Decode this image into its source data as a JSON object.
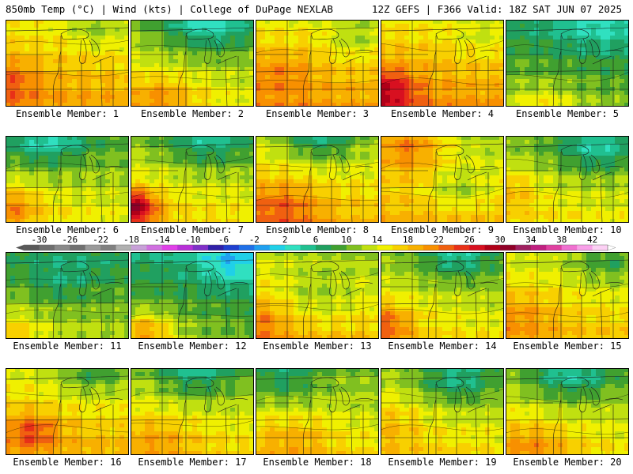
{
  "header": {
    "left": "850mb Temp (°C) | Wind (kts) | College of DuPage NEXLAB",
    "right": "12Z GEFS | F366 Valid: 18Z SAT JUN 07 2025"
  },
  "panels": [
    {
      "label": "Ensemble Member: 1",
      "base": 17.5,
      "blobs": [
        [
          0.0,
          0.7,
          0.25,
          4
        ],
        [
          0.7,
          0.1,
          0.2,
          -3
        ]
      ],
      "icon": "temperature-map-icon"
    },
    {
      "label": "Ensemble Member: 2",
      "base": 13.0,
      "blobs": [
        [
          0.6,
          0.0,
          0.35,
          -7
        ],
        [
          0.2,
          0.9,
          0.3,
          5
        ]
      ],
      "icon": "temperature-map-icon"
    },
    {
      "label": "Ensemble Member: 3",
      "base": 17.5,
      "blobs": [
        [
          0.2,
          0.6,
          0.25,
          3
        ],
        [
          0.8,
          0.2,
          0.2,
          -3
        ]
      ],
      "icon": "temperature-map-icon"
    },
    {
      "label": "Ensemble Member: 4",
      "base": 18.0,
      "blobs": [
        [
          0.0,
          0.8,
          0.25,
          9
        ],
        [
          0.8,
          0.2,
          0.2,
          -2
        ]
      ],
      "icon": "temperature-map-icon"
    },
    {
      "label": "Ensemble Member: 5",
      "base": 9.0,
      "blobs": [
        [
          0.7,
          0.0,
          0.3,
          -3
        ],
        [
          0.3,
          1.0,
          0.25,
          4
        ]
      ],
      "icon": "temperature-map-icon"
    },
    {
      "label": "Ensemble Member: 6",
      "base": 13.0,
      "blobs": [
        [
          0.3,
          0.0,
          0.35,
          -7
        ],
        [
          0.0,
          0.8,
          0.25,
          6
        ]
      ],
      "icon": "temperature-map-icon"
    },
    {
      "label": "Ensemble Member: 7",
      "base": 14.0,
      "blobs": [
        [
          0.6,
          0.0,
          0.35,
          -6
        ],
        [
          0.0,
          0.8,
          0.2,
          14
        ]
      ],
      "icon": "temperature-map-icon"
    },
    {
      "label": "Ensemble Member: 8",
      "base": 16.0,
      "blobs": [
        [
          0.5,
          0.0,
          0.3,
          -7
        ],
        [
          0.2,
          0.8,
          0.3,
          5
        ]
      ],
      "icon": "temperature-map-icon"
    },
    {
      "label": "Ensemble Member: 9",
      "base": 15.5,
      "blobs": [
        [
          0.2,
          0.1,
          0.3,
          8
        ],
        [
          0.6,
          0.6,
          0.2,
          -4
        ]
      ],
      "icon": "temperature-map-icon"
    },
    {
      "label": "Ensemble Member: 10",
      "base": 13.0,
      "blobs": [
        [
          0.7,
          0.1,
          0.3,
          -6
        ],
        [
          0.0,
          0.6,
          0.25,
          4
        ]
      ],
      "icon": "temperature-map-icon"
    },
    {
      "label": "Ensemble Member: 11",
      "base": 10.5,
      "blobs": [
        [
          0.4,
          0.3,
          0.3,
          -3
        ],
        [
          0.0,
          0.9,
          0.25,
          4
        ]
      ],
      "icon": "temperature-map-icon"
    },
    {
      "label": "Ensemble Member: 12",
      "base": 8.5,
      "blobs": [
        [
          0.8,
          0.1,
          0.25,
          -5
        ],
        [
          0.1,
          0.9,
          0.25,
          8
        ]
      ],
      "icon": "temperature-map-icon"
    },
    {
      "label": "Ensemble Member: 13",
      "base": 15.5,
      "blobs": [
        [
          0.0,
          0.8,
          0.25,
          4
        ],
        [
          0.5,
          0.5,
          0.3,
          -3
        ]
      ],
      "icon": "temperature-map-icon"
    },
    {
      "label": "Ensemble Member: 14",
      "base": 13.5,
      "blobs": [
        [
          0.6,
          0.0,
          0.3,
          -6
        ],
        [
          0.0,
          0.8,
          0.25,
          7
        ]
      ],
      "icon": "temperature-map-icon"
    },
    {
      "label": "Ensemble Member: 15",
      "base": 15.5,
      "blobs": [
        [
          0.8,
          0.1,
          0.25,
          -4
        ],
        [
          0.1,
          0.7,
          0.3,
          3
        ]
      ],
      "icon": "temperature-map-icon"
    },
    {
      "label": "Ensemble Member: 16",
      "base": 16.5,
      "blobs": [
        [
          0.2,
          0.7,
          0.2,
          6
        ],
        [
          0.7,
          0.0,
          0.3,
          -5
        ]
      ],
      "icon": "temperature-map-icon"
    },
    {
      "label": "Ensemble Member: 17",
      "base": 14.5,
      "blobs": [
        [
          0.5,
          0.0,
          0.35,
          -6
        ],
        [
          0.2,
          0.8,
          0.3,
          3
        ]
      ],
      "icon": "temperature-map-icon"
    },
    {
      "label": "Ensemble Member: 18",
      "base": 14.0,
      "blobs": [
        [
          0.2,
          0.1,
          0.3,
          -5
        ],
        [
          0.3,
          0.8,
          0.3,
          3
        ]
      ],
      "icon": "temperature-map-icon"
    },
    {
      "label": "Ensemble Member: 19",
      "base": 14.0,
      "blobs": [
        [
          0.6,
          0.1,
          0.3,
          -6
        ],
        [
          0.0,
          0.6,
          0.3,
          3
        ]
      ],
      "icon": "temperature-map-icon"
    },
    {
      "label": "Ensemble Member: 20",
      "base": 14.0,
      "blobs": [
        [
          0.5,
          0.0,
          0.35,
          -7
        ],
        [
          0.2,
          0.9,
          0.3,
          4
        ]
      ],
      "icon": "temperature-map-icon"
    }
  ],
  "colorbar": {
    "ticks": [
      "-30",
      "-26",
      "-22",
      "-18",
      "-14",
      "-10",
      "-6",
      "-2",
      "2",
      "6",
      "10",
      "14",
      "18",
      "22",
      "26",
      "30",
      "34",
      "38",
      "42"
    ],
    "min": -32,
    "max": 44,
    "stops": [
      [
        -32,
        "#5a5a5a"
      ],
      [
        -30,
        "#6e6e6e"
      ],
      [
        -28,
        "#8a8a8a"
      ],
      [
        -26,
        "#707070"
      ],
      [
        -24,
        "#9a9a9a"
      ],
      [
        -22,
        "#808080"
      ],
      [
        -20,
        "#b0b0b0"
      ],
      [
        -18,
        "#c8a0d8"
      ],
      [
        -16,
        "#d070e0"
      ],
      [
        -14,
        "#e040e8"
      ],
      [
        -12,
        "#b830d8"
      ],
      [
        -10,
        "#8030c8"
      ],
      [
        -8,
        "#3020a8"
      ],
      [
        -6,
        "#2040d0"
      ],
      [
        -4,
        "#2070e8"
      ],
      [
        -2,
        "#20a0f0"
      ],
      [
        0,
        "#20d0e8"
      ],
      [
        2,
        "#30e0c0"
      ],
      [
        4,
        "#20c090"
      ],
      [
        6,
        "#20a060"
      ],
      [
        8,
        "#40a030"
      ],
      [
        10,
        "#80c020"
      ],
      [
        12,
        "#c0e010"
      ],
      [
        14,
        "#f0f000"
      ],
      [
        16,
        "#f8d000"
      ],
      [
        18,
        "#f8b000"
      ],
      [
        20,
        "#f89000"
      ],
      [
        22,
        "#f06010"
      ],
      [
        24,
        "#e83018"
      ],
      [
        26,
        "#d81020"
      ],
      [
        28,
        "#b00018"
      ],
      [
        30,
        "#900028"
      ],
      [
        32,
        "#a02060"
      ],
      [
        34,
        "#c02080"
      ],
      [
        36,
        "#e040a0"
      ],
      [
        38,
        "#f070d0"
      ],
      [
        40,
        "#f8a0e8"
      ],
      [
        42,
        "#fcd0f4"
      ],
      [
        44,
        "#ffffff"
      ]
    ]
  }
}
